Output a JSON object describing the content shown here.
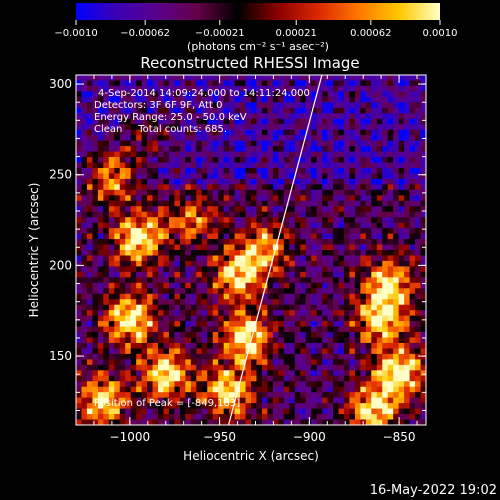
{
  "chart_data": {
    "type": "heatmap",
    "title": "Reconstructed RHESSI Image",
    "xlabel": "Heliocentric X (arcsec)",
    "ylabel": "Heliocentric Y (arcsec)",
    "xlim": [
      -1030,
      -835
    ],
    "ylim": [
      112,
      305
    ],
    "x_ticks": [
      -1000,
      -950,
      -900,
      -850
    ],
    "x_tick_labels": [
      "−1000",
      "−950",
      "−900",
      "−850"
    ],
    "y_ticks": [
      150,
      200,
      250,
      300
    ],
    "y_tick_labels": [
      "150",
      "200",
      "250",
      "300"
    ],
    "colorbar": {
      "range": [
        -0.001,
        0.001
      ],
      "ticks": [
        -0.001,
        -0.00062,
        -0.00021,
        0.00021,
        0.00062,
        0.001
      ],
      "tick_labels": [
        "−0.0010",
        "−0.00062",
        "−0.00021",
        "0.00021",
        "0.00062",
        "0.0010"
      ],
      "units": "(photons cm⁻² s⁻¹ asec⁻²)",
      "colormap": [
        "#0000ff",
        "#3c00b4",
        "#5a008c",
        "#640046",
        "#000000",
        "#8c0000",
        "#dc2800",
        "#ff7800",
        "#ffc800",
        "#ffffc8"
      ]
    },
    "annotations": [
      "4-Sep-2014 14:09:24.000 to 14:11:24.000",
      "Detectors: 3F 6F 9F, Att 0",
      "Energy Range: 25.0 - 50.0 keV",
      "Clean     Total counts: 685."
    ],
    "peak_label": "Position of Peak = [-849,183]",
    "limb_line": {
      "x": [
        -945,
        -893
      ],
      "y": [
        112,
        305
      ]
    },
    "sources": [
      {
        "region": "left cluster",
        "x_range": [
          -1030,
          -975
        ],
        "y_range": [
          115,
          250
        ],
        "level": "high"
      },
      {
        "region": "central column",
        "x_range": [
          -955,
          -915
        ],
        "y_range": [
          120,
          240
        ],
        "level": "high"
      },
      {
        "region": "right cluster",
        "x_range": [
          -875,
          -840
        ],
        "y_range": [
          115,
          200
        ],
        "level": "high"
      },
      {
        "region": "upper field",
        "x_range": [
          -1000,
          -850
        ],
        "y_range": [
          250,
          305
        ],
        "level": "low/negative"
      }
    ],
    "grid": false
  },
  "footer": {
    "timestamp": "16-May-2022 19:02"
  }
}
